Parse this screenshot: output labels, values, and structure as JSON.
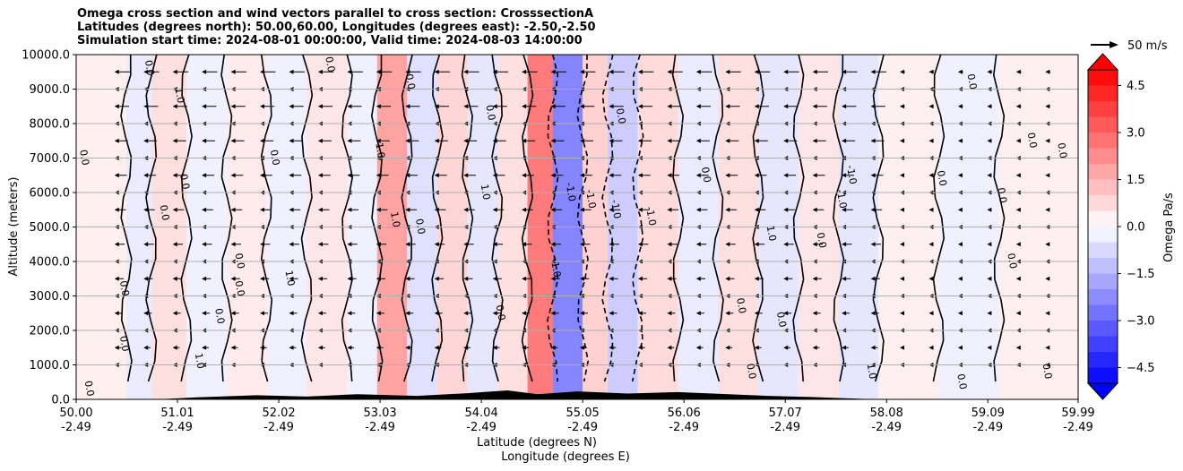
{
  "title_lines": [
    "Omega cross section and wind vectors parallel to cross section: CrosssectionA",
    "Latitudes (degrees north): 50.00,60.00, Longitudes (degrees east): -2.50,-2.50",
    "Simulation start time: 2024-08-01 00:00:00, Valid time: 2024-08-03 14:00:00"
  ],
  "quiver_key_label": "50 m/s",
  "colorbar": {
    "label": "Omega Pa/s",
    "ticks": [
      "4.5",
      "3.0",
      "1.5",
      "0.0",
      "−1.5",
      "−3.0",
      "−4.5"
    ],
    "tick_values": [
      4.5,
      3.0,
      1.5,
      0.0,
      -1.5,
      -3.0,
      -4.5
    ],
    "range": [
      -5.0,
      5.0
    ],
    "colormap": "bwr",
    "extend": "both"
  },
  "chart_data": {
    "type": "heatmap",
    "ylabel": "Altitude (meters)",
    "xlabel_lines": [
      "Latitude (degrees N)",
      "Longitude (degrees E)"
    ],
    "ylim": [
      0,
      10000
    ],
    "y_ticks": [
      "0.0",
      "1000.0",
      "2000.0",
      "3000.0",
      "4000.0",
      "5000.0",
      "6000.0",
      "7000.0",
      "8000.0",
      "9000.0",
      "10000.0"
    ],
    "y_tick_values": [
      0,
      1000,
      2000,
      3000,
      4000,
      5000,
      6000,
      7000,
      8000,
      9000,
      10000
    ],
    "x_ticks": [
      {
        "lat": "50.00",
        "lon": "-2.49"
      },
      {
        "lat": "51.01",
        "lon": "-2.49"
      },
      {
        "lat": "52.02",
        "lon": "-2.49"
      },
      {
        "lat": "53.03",
        "lon": "-2.49"
      },
      {
        "lat": "54.04",
        "lon": "-2.49"
      },
      {
        "lat": "55.05",
        "lon": "-2.49"
      },
      {
        "lat": "56.06",
        "lon": "-2.49"
      },
      {
        "lat": "57.07",
        "lon": "-2.49"
      },
      {
        "lat": "58.08",
        "lon": "-2.49"
      },
      {
        "lat": "59.09",
        "lon": "-2.49"
      },
      {
        "lat": "59.99",
        "lon": "-2.49"
      }
    ],
    "x_tick_values": [
      50.0,
      51.01,
      52.02,
      53.03,
      54.04,
      55.05,
      56.06,
      57.07,
      58.08,
      59.09,
      59.99
    ],
    "xlim": [
      50.0,
      59.99
    ],
    "grid": "horizontal",
    "omega_bands": [
      {
        "lat0": 50.0,
        "lat1": 50.5,
        "omega": 0.3
      },
      {
        "lat0": 50.5,
        "lat1": 50.75,
        "omega": -0.4
      },
      {
        "lat0": 50.75,
        "lat1": 51.1,
        "omega": 0.6
      },
      {
        "lat0": 51.1,
        "lat1": 51.5,
        "omega": -0.3
      },
      {
        "lat0": 51.5,
        "lat1": 51.9,
        "omega": 0.4
      },
      {
        "lat0": 51.9,
        "lat1": 52.3,
        "omega": -0.3
      },
      {
        "lat0": 52.3,
        "lat1": 52.7,
        "omega": 0.5
      },
      {
        "lat0": 52.7,
        "lat1": 53.0,
        "omega": -0.3
      },
      {
        "lat0": 53.0,
        "lat1": 53.3,
        "omega": 1.8
      },
      {
        "lat0": 53.3,
        "lat1": 53.6,
        "omega": -0.6
      },
      {
        "lat0": 53.6,
        "lat1": 53.9,
        "omega": 0.8
      },
      {
        "lat0": 53.9,
        "lat1": 54.2,
        "omega": -0.5
      },
      {
        "lat0": 54.2,
        "lat1": 54.5,
        "omega": 0.6
      },
      {
        "lat0": 54.5,
        "lat1": 54.75,
        "omega": 2.6
      },
      {
        "lat0": 54.75,
        "lat1": 55.05,
        "omega": -2.4
      },
      {
        "lat0": 55.05,
        "lat1": 55.3,
        "omega": 0.9
      },
      {
        "lat0": 55.3,
        "lat1": 55.6,
        "omega": -1.0
      },
      {
        "lat0": 55.6,
        "lat1": 56.0,
        "omega": 0.7
      },
      {
        "lat0": 56.0,
        "lat1": 56.4,
        "omega": -0.4
      },
      {
        "lat0": 56.4,
        "lat1": 56.8,
        "omega": 0.6
      },
      {
        "lat0": 56.8,
        "lat1": 57.2,
        "omega": -0.5
      },
      {
        "lat0": 57.2,
        "lat1": 57.6,
        "omega": 0.5
      },
      {
        "lat0": 57.6,
        "lat1": 58.0,
        "omega": -0.5
      },
      {
        "lat0": 58.0,
        "lat1": 58.6,
        "omega": 0.3
      },
      {
        "lat0": 58.6,
        "lat1": 59.2,
        "omega": -0.3
      },
      {
        "lat0": 59.2,
        "lat1": 59.99,
        "omega": 0.3
      }
    ],
    "contour_labels": [
      {
        "lat": 50.05,
        "alt": 7000,
        "text": "0.0"
      },
      {
        "lat": 50.1,
        "alt": 300,
        "text": "0.0"
      },
      {
        "lat": 50.45,
        "alt": 1600,
        "text": "0.0"
      },
      {
        "lat": 50.45,
        "alt": 3200,
        "text": "0.0"
      },
      {
        "lat": 50.7,
        "alt": 9600,
        "text": "0.0"
      },
      {
        "lat": 51.0,
        "alt": 8800,
        "text": "1.0"
      },
      {
        "lat": 51.05,
        "alt": 6300,
        "text": "0.0"
      },
      {
        "lat": 50.85,
        "alt": 5400,
        "text": "0.0"
      },
      {
        "lat": 51.2,
        "alt": 1100,
        "text": "1.0"
      },
      {
        "lat": 51.4,
        "alt": 2400,
        "text": "0.0"
      },
      {
        "lat": 51.6,
        "alt": 3200,
        "text": "0.0"
      },
      {
        "lat": 51.6,
        "alt": 4000,
        "text": "0.0"
      },
      {
        "lat": 51.95,
        "alt": 7000,
        "text": "0.0"
      },
      {
        "lat": 52.1,
        "alt": 3500,
        "text": "1.0"
      },
      {
        "lat": 52.5,
        "alt": 9700,
        "text": "0.0"
      },
      {
        "lat": 53.0,
        "alt": 7200,
        "text": "1.0"
      },
      {
        "lat": 53.15,
        "alt": 5200,
        "text": "1.0"
      },
      {
        "lat": 53.4,
        "alt": 5000,
        "text": "0.0"
      },
      {
        "lat": 53.3,
        "alt": 9200,
        "text": "0.0"
      },
      {
        "lat": 54.1,
        "alt": 8300,
        "text": "0.0"
      },
      {
        "lat": 54.05,
        "alt": 6000,
        "text": "1.0"
      },
      {
        "lat": 54.2,
        "alt": 2500,
        "text": "0.0"
      },
      {
        "lat": 54.75,
        "alt": 3800,
        "text": "-1.0"
      },
      {
        "lat": 54.9,
        "alt": 6000,
        "text": "-1.0"
      },
      {
        "lat": 55.1,
        "alt": 5800,
        "text": "-1.0"
      },
      {
        "lat": 55.35,
        "alt": 5500,
        "text": "-1.0"
      },
      {
        "lat": 55.7,
        "alt": 5300,
        "text": "-1.0"
      },
      {
        "lat": 55.4,
        "alt": 8200,
        "text": "0.0"
      },
      {
        "lat": 56.25,
        "alt": 6500,
        "text": "0.0"
      },
      {
        "lat": 56.9,
        "alt": 4800,
        "text": "1.0"
      },
      {
        "lat": 57.0,
        "alt": 2300,
        "text": "0.0"
      },
      {
        "lat": 57.4,
        "alt": 4600,
        "text": "0.0"
      },
      {
        "lat": 57.6,
        "alt": 5800,
        "text": "-1.0"
      },
      {
        "lat": 57.7,
        "alt": 6500,
        "text": "-1.0"
      },
      {
        "lat": 57.9,
        "alt": 800,
        "text": "1.0"
      },
      {
        "lat": 58.6,
        "alt": 6400,
        "text": "0.0"
      },
      {
        "lat": 58.9,
        "alt": 9200,
        "text": "0.0"
      },
      {
        "lat": 59.2,
        "alt": 5900,
        "text": "0.0"
      },
      {
        "lat": 59.3,
        "alt": 4000,
        "text": "0.0"
      },
      {
        "lat": 59.5,
        "alt": 7500,
        "text": "0.0"
      },
      {
        "lat": 59.8,
        "alt": 7200,
        "text": "0.0"
      },
      {
        "lat": 59.65,
        "alt": 800,
        "text": "0.0"
      },
      {
        "lat": 58.8,
        "alt": 500,
        "text": "0.0"
      },
      {
        "lat": 56.6,
        "alt": 2700,
        "text": "0.0"
      },
      {
        "lat": 56.7,
        "alt": 800,
        "text": "0.0"
      }
    ]
  }
}
